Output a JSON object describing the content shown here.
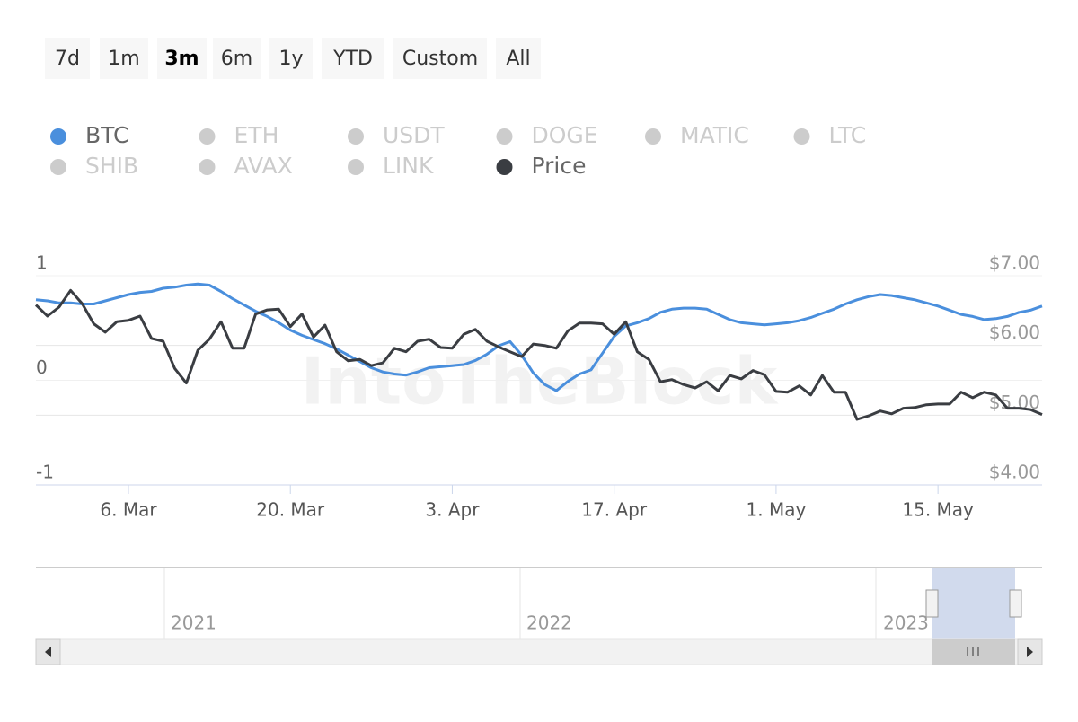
{
  "range_buttons": [
    "7d",
    "1m",
    "3m",
    "6m",
    "1y",
    "YTD",
    "Custom",
    "All"
  ],
  "selected_range": 2,
  "watermark": "IntoTheBlock",
  "navigator": {
    "labels": [
      "2021",
      "2022",
      "2023"
    ]
  },
  "chart_data": {
    "type": "line",
    "categories": [
      null,
      null,
      null,
      null,
      null,
      null,
      null,
      null,
      "6. Mar",
      null,
      null,
      null,
      null,
      null,
      null,
      null,
      null,
      null,
      null,
      null,
      null,
      null,
      "20. Mar",
      null,
      null,
      null,
      null,
      null,
      null,
      null,
      null,
      null,
      null,
      null,
      null,
      null,
      "3. Apr",
      null,
      null,
      null,
      null,
      null,
      null,
      null,
      null,
      null,
      null,
      null,
      null,
      null,
      "17. Apr",
      null,
      null,
      null,
      null,
      null,
      null,
      null,
      null,
      null,
      null,
      null,
      null,
      null,
      "1. May",
      null,
      null,
      null,
      null,
      null,
      null,
      null,
      null,
      null,
      null,
      null,
      null,
      null,
      "15. May",
      null,
      null,
      null,
      null,
      null,
      null,
      null,
      null,
      null
    ],
    "ylim": [
      -1,
      1
    ],
    "yticks": [
      -1,
      0,
      1
    ],
    "y2lim": [
      4,
      7
    ],
    "y2ticks": [
      {
        "value": 4,
        "label": "$4.00"
      },
      {
        "value": 5,
        "label": "$5.00"
      },
      {
        "value": 6,
        "label": "$6.00"
      },
      {
        "value": 7,
        "label": "$7.00"
      }
    ],
    "grid": true,
    "series": [
      {
        "name": "BTC",
        "color": "#4a8fdd",
        "visible": true,
        "values": [
          0.77,
          0.76,
          0.74,
          0.74,
          0.73,
          0.73,
          0.76,
          0.79,
          0.82,
          0.84,
          0.85,
          0.88,
          0.89,
          0.91,
          0.92,
          0.91,
          0.85,
          0.78,
          0.72,
          0.66,
          0.61,
          0.55,
          0.48,
          0.43,
          0.39,
          0.35,
          0.3,
          0.24,
          0.18,
          0.12,
          0.08,
          0.06,
          0.05,
          0.08,
          0.12,
          0.13,
          0.14,
          0.15,
          0.19,
          0.25,
          0.33,
          0.37,
          0.24,
          0.07,
          -0.04,
          -0.1,
          -0.01,
          0.06,
          0.1,
          0.26,
          0.42,
          0.52,
          0.55,
          0.59,
          0.65,
          0.68,
          0.69,
          0.69,
          0.68,
          0.63,
          0.58,
          0.55,
          0.54,
          0.53,
          0.54,
          0.55,
          0.57,
          0.6,
          0.64,
          0.68,
          0.73,
          0.77,
          0.8,
          0.82,
          0.81,
          0.79,
          0.77,
          0.74,
          0.71,
          0.67,
          0.63,
          0.61,
          0.58,
          0.59,
          0.61,
          0.65,
          0.67,
          0.71
        ]
      },
      {
        "name": "ETH",
        "color": "#cccccc",
        "visible": false
      },
      {
        "name": "USDT",
        "color": "#cccccc",
        "visible": false
      },
      {
        "name": "DOGE",
        "color": "#cccccc",
        "visible": false
      },
      {
        "name": "MATIC",
        "color": "#cccccc",
        "visible": false
      },
      {
        "name": "LTC",
        "color": "#cccccc",
        "visible": false
      },
      {
        "name": "SHIB",
        "color": "#cccccc",
        "visible": false
      },
      {
        "name": "AVAX",
        "color": "#cccccc",
        "visible": false
      },
      {
        "name": "LINK",
        "color": "#cccccc",
        "visible": false
      },
      {
        "name": "Price",
        "color": "#3a3d42",
        "visible": true,
        "axis": "y2",
        "values": [
          6.58,
          6.42,
          6.55,
          6.79,
          6.6,
          6.31,
          6.19,
          6.34,
          6.36,
          6.42,
          6.1,
          6.06,
          5.67,
          5.46,
          5.93,
          6.09,
          6.34,
          5.96,
          5.96,
          6.45,
          6.51,
          6.52,
          6.27,
          6.45,
          6.12,
          6.29,
          5.91,
          5.78,
          5.8,
          5.71,
          5.75,
          5.96,
          5.91,
          6.06,
          6.09,
          5.97,
          5.96,
          6.16,
          6.23,
          6.06,
          5.98,
          5.91,
          5.84,
          6.02,
          6.0,
          5.96,
          6.21,
          6.32,
          6.32,
          6.31,
          6.16,
          6.34,
          5.91,
          5.8,
          5.48,
          5.51,
          5.44,
          5.39,
          5.48,
          5.35,
          5.57,
          5.52,
          5.64,
          5.58,
          5.34,
          5.33,
          5.42,
          5.29,
          5.57,
          5.33,
          5.33,
          4.94,
          4.99,
          5.06,
          5.02,
          5.1,
          5.11,
          5.15,
          5.16,
          5.16,
          5.33,
          5.25,
          5.33,
          5.29,
          5.1,
          5.1,
          5.08,
          5.01
        ]
      }
    ]
  }
}
